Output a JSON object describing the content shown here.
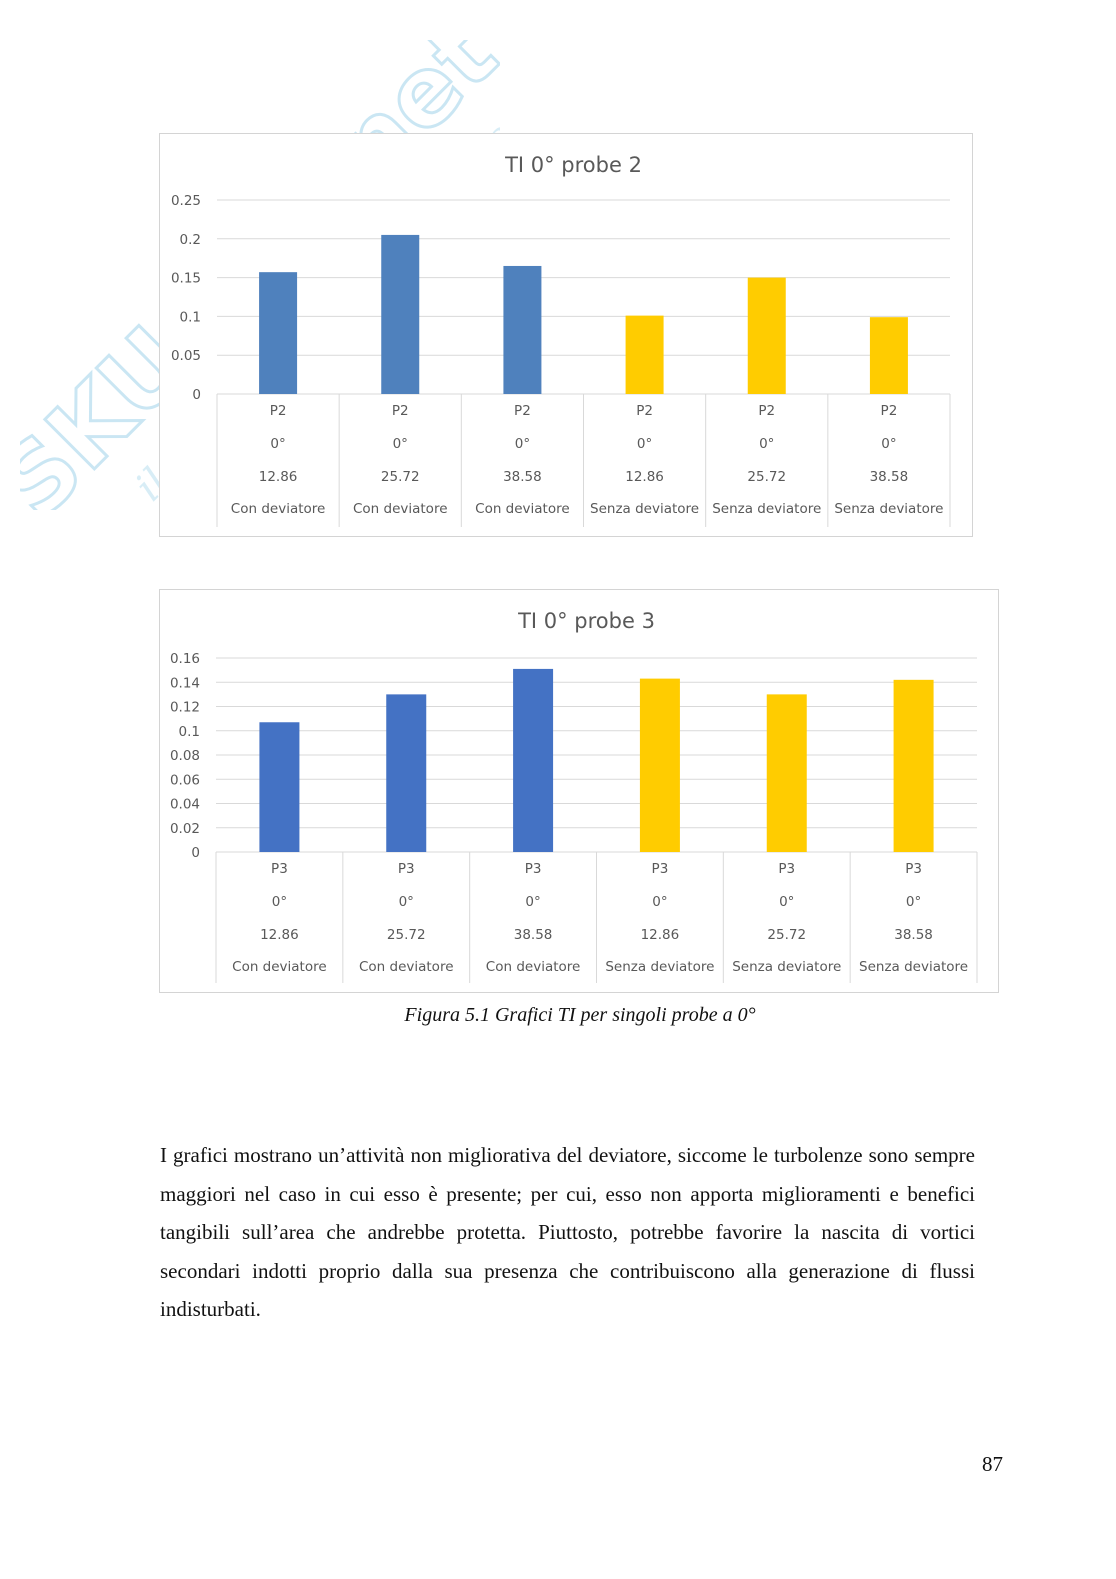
{
  "watermark": {
    "brand": "SKUOLA.net",
    "tagline": "il paradiso dello studente",
    "color": "#8ecae6"
  },
  "chart_data": [
    {
      "type": "bar",
      "title": "TI 0° probe 2",
      "ylim": [
        0,
        0.25
      ],
      "yticks": [
        "0",
        "0.05",
        "0.1",
        "0.15",
        "0.2",
        "0.25"
      ],
      "ytick_values": [
        0,
        0.05,
        0.1,
        0.15,
        0.2,
        0.25
      ],
      "grid": true,
      "categories": [
        [
          "P2",
          "0°",
          "12.86",
          "Con deviatore"
        ],
        [
          "P2",
          "0°",
          "25.72",
          "Con deviatore"
        ],
        [
          "P2",
          "0°",
          "38.58",
          "Con deviatore"
        ],
        [
          "P2",
          "0°",
          "12.86",
          "Senza deviatore"
        ],
        [
          "P2",
          "0°",
          "25.72",
          "Senza deviatore"
        ],
        [
          "P2",
          "0°",
          "38.58",
          "Senza deviatore"
        ]
      ],
      "values": [
        0.157,
        0.205,
        0.165,
        0.101,
        0.15,
        0.099
      ],
      "colors": [
        "#4f81bd",
        "#4f81bd",
        "#4f81bd",
        "#ffcc00",
        "#ffcc00",
        "#ffcc00"
      ]
    },
    {
      "type": "bar",
      "title": "TI 0° probe 3",
      "ylim": [
        0,
        0.16
      ],
      "yticks": [
        "0",
        "0.02",
        "0.04",
        "0.06",
        "0.08",
        "0.1",
        "0.12",
        "0.14",
        "0.16"
      ],
      "ytick_values": [
        0,
        0.02,
        0.04,
        0.06,
        0.08,
        0.1,
        0.12,
        0.14,
        0.16
      ],
      "grid": true,
      "categories": [
        [
          "P3",
          "0°",
          "12.86",
          "Con deviatore"
        ],
        [
          "P3",
          "0°",
          "25.72",
          "Con deviatore"
        ],
        [
          "P3",
          "0°",
          "38.58",
          "Con deviatore"
        ],
        [
          "P3",
          "0°",
          "12.86",
          "Senza deviatore"
        ],
        [
          "P3",
          "0°",
          "25.72",
          "Senza deviatore"
        ],
        [
          "P3",
          "0°",
          "38.58",
          "Senza deviatore"
        ]
      ],
      "values": [
        0.107,
        0.13,
        0.151,
        0.143,
        0.13,
        0.142
      ],
      "colors": [
        "#4472c4",
        "#4472c4",
        "#4472c4",
        "#ffcc00",
        "#ffcc00",
        "#ffcc00"
      ]
    }
  ],
  "caption": "Figura 5.1 Grafici TI per singoli probe a 0°",
  "body_text": "I grafici mostrano un’attività non migliorativa del deviatore, siccome le turbolenze sono sempre maggiori nel caso in cui esso è presente; per cui, esso non apporta miglioramenti e benefici tangibili sull’area che andrebbe protetta. Piuttosto, potrebbe favorire la nascita di vortici secondari indotti proprio dalla sua presenza che contribuiscono alla generazione di flussi indisturbati.",
  "page_number": "87"
}
